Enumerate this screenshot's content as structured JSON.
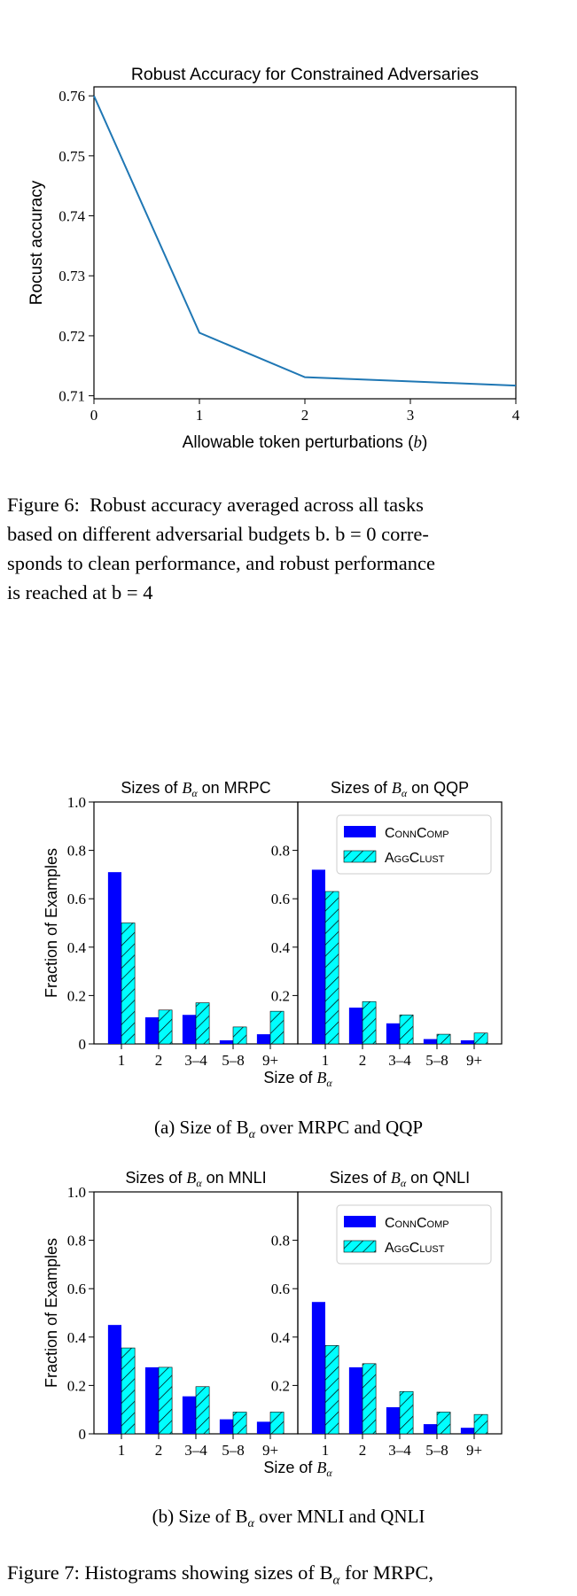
{
  "chart_data": [
    {
      "type": "line",
      "title": "Robust Accuracy for Constrained Adversaries",
      "xlabel": "Allowable token perturbations (b)",
      "ylabel": "Rocust accuracy",
      "x": [
        0,
        1,
        2,
        3,
        4
      ],
      "y": [
        0.76,
        0.7205,
        0.7131,
        0.7124,
        0.7117
      ],
      "xticks": [
        "0",
        "1",
        "2",
        "3",
        "4"
      ],
      "yticks": [
        "0.71",
        "0.72",
        "0.73",
        "0.74",
        "0.75",
        "0.76"
      ],
      "xlim": [
        0,
        4
      ],
      "ylim": [
        0.7095,
        0.7615
      ],
      "color": "#1f77b4"
    },
    {
      "type": "bar",
      "panels": [
        {
          "title": "Sizes of B_α on MRPC",
          "categories": [
            "1",
            "2",
            "3–4",
            "5–8",
            "9+"
          ],
          "series": [
            {
              "name": "ConnComp",
              "values": [
                0.71,
                0.11,
                0.12,
                0.015,
                0.04
              ]
            },
            {
              "name": "AggClust",
              "values": [
                0.5,
                0.14,
                0.17,
                0.07,
                0.135
              ]
            }
          ]
        },
        {
          "title": "Sizes of B_α on QQP",
          "categories": [
            "1",
            "2",
            "3–4",
            "5–8",
            "9+"
          ],
          "series": [
            {
              "name": "ConnComp",
              "values": [
                0.72,
                0.15,
                0.085,
                0.02,
                0.015
              ]
            },
            {
              "name": "AggClust",
              "values": [
                0.63,
                0.175,
                0.12,
                0.04,
                0.045
              ]
            }
          ]
        }
      ],
      "xlabel": "Size of B_α",
      "ylabel": "Fraction of Examples",
      "ylim": [
        0,
        1.0
      ],
      "yticks_left": [
        "0",
        "0.2",
        "0.4",
        "0.6",
        "0.8",
        "1.0"
      ],
      "yticks_right": [
        "0.2",
        "0.4",
        "0.6",
        "0.8"
      ],
      "legend": "top-right"
    },
    {
      "type": "bar",
      "panels": [
        {
          "title": "Sizes of B_α on MNLI",
          "categories": [
            "1",
            "2",
            "3–4",
            "5–8",
            "9+"
          ],
          "series": [
            {
              "name": "ConnComp",
              "values": [
                0.45,
                0.275,
                0.155,
                0.06,
                0.05
              ]
            },
            {
              "name": "AggClust",
              "values": [
                0.355,
                0.275,
                0.195,
                0.09,
                0.09
              ]
            }
          ]
        },
        {
          "title": "Sizes of B_α on QNLI",
          "categories": [
            "1",
            "2",
            "3–4",
            "5–8",
            "9+"
          ],
          "series": [
            {
              "name": "ConnComp",
              "values": [
                0.545,
                0.275,
                0.11,
                0.04,
                0.025
              ]
            },
            {
              "name": "AggClust",
              "values": [
                0.365,
                0.29,
                0.175,
                0.09,
                0.08
              ]
            }
          ]
        }
      ],
      "xlabel": "Size of B_α",
      "ylabel": "Fraction of Examples",
      "ylim": [
        0,
        1.0
      ],
      "yticks_left": [
        "0",
        "0.2",
        "0.4",
        "0.6",
        "0.8",
        "1.0"
      ],
      "yticks_right": [
        "0.2",
        "0.4",
        "0.6",
        "0.8"
      ],
      "legend": "top-right"
    }
  ],
  "legend_labels": {
    "conn": "ConnComp",
    "agg": "AggClust"
  },
  "colors": {
    "conn": "#0000ff",
    "agg": "#00ffff",
    "line": "#1f77b4"
  },
  "captions": {
    "fig6_label": "Figure 6:",
    "fig6_text_1": "Robust accuracy averaged across all tasks",
    "fig6_text_2": "based on different adversarial budgets b. b = 0 corre-",
    "fig6_text_3": "sponds to clean performance, and robust performance",
    "fig6_text_4": "is reached at b = 4",
    "sub_a": "(a)  Size of B",
    "sub_a_tail": " over MRPC and QQP",
    "sub_b": "(b)  Size of B",
    "sub_b_tail": " over MNLI and QNLI",
    "fig7_text": "Figure 7: Histograms showing sizes of B",
    "fig7_tail": " for MRPC,",
    "alpha": "α"
  }
}
